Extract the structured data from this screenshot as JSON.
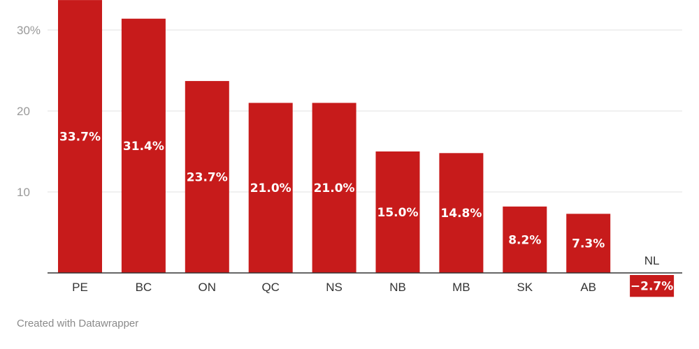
{
  "chart_data": {
    "type": "bar",
    "title": "",
    "xlabel": "",
    "ylabel": "",
    "categories": [
      "PE",
      "BC",
      "ON",
      "QC",
      "NS",
      "NB",
      "MB",
      "SK",
      "AB",
      "NL"
    ],
    "values": [
      33.7,
      31.4,
      23.7,
      21.0,
      21.0,
      15.0,
      14.8,
      8.2,
      7.3,
      -2.7
    ],
    "data_labels": [
      "33.7%",
      "31.4%",
      "23.7%",
      "21.0%",
      "21.0%",
      "15.0%",
      "14.8%",
      "8.2%",
      "7.3%",
      "−2.7%"
    ],
    "y_ticks": [
      {
        "value": 10,
        "label": "10"
      },
      {
        "value": 20,
        "label": "20"
      },
      {
        "value": 30,
        "label": "30%"
      }
    ],
    "ylim": [
      -3,
      34
    ],
    "grid": true,
    "bar_color": "#c71b1b"
  },
  "footer": {
    "credit": "Created with Datawrapper"
  }
}
